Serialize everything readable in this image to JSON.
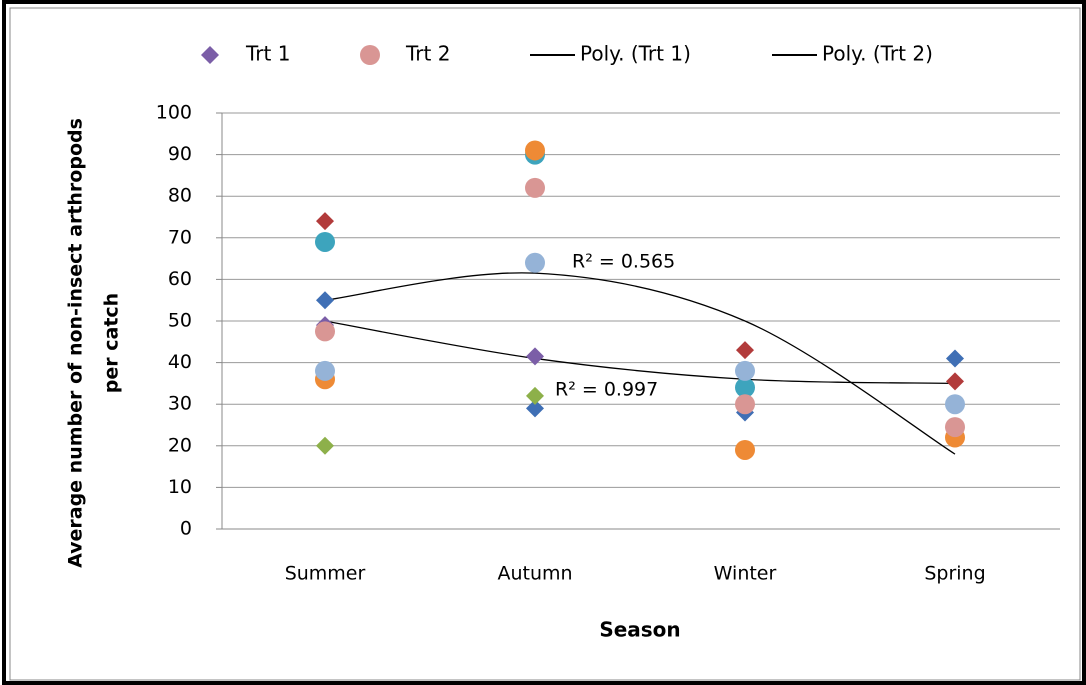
{
  "chart_data": {
    "type": "scatter",
    "x_label": "Season",
    "y_label_lines": [
      "Average number of  non-insect arthropods",
      "per catch"
    ],
    "categories": [
      "Summer",
      "Autumn",
      "Winter",
      "Spring"
    ],
    "ylim": [
      0,
      100
    ],
    "yticks": [
      0,
      10,
      20,
      30,
      40,
      50,
      60,
      70,
      80,
      90,
      100
    ],
    "grid": true,
    "groups": [
      {
        "name": "Trt 1",
        "marker": "diamond",
        "legend_color": "#7b5ea7",
        "replicates": [
          {
            "color": "#3f6fb5",
            "values": [
              55,
              29,
              28,
              41
            ]
          },
          {
            "color": "#b23b3b",
            "values": [
              74,
              null,
              43,
              35.5
            ]
          },
          {
            "color": "#8db04a",
            "values": [
              20,
              32,
              null,
              null
            ]
          },
          {
            "color": "#7b5ea7",
            "values": [
              49,
              41.5,
              null,
              null
            ]
          }
        ],
        "trend": {
          "name": "Poly. (Trt 1)",
          "color": "#000000",
          "values": [
            50,
            41,
            36,
            35
          ],
          "r2": "R² = 0.997"
        }
      },
      {
        "name": "Trt 2",
        "marker": "circle",
        "legend_color": "#d99694",
        "replicates": [
          {
            "color": "#3da4bd",
            "values": [
              69,
              90,
              34,
              null
            ]
          },
          {
            "color": "#ee8a35",
            "values": [
              36,
              91,
              19,
              22
            ]
          },
          {
            "color": "#d99694",
            "values": [
              47.5,
              82,
              30,
              24.5
            ]
          },
          {
            "color": "#95b3d7",
            "values": [
              38,
              64,
              38,
              30
            ]
          }
        ],
        "trend": {
          "name": "Poly. (Trt 2)",
          "color": "#000000",
          "values": [
            55,
            61.5,
            50,
            18
          ],
          "r2": "R² = 0.565"
        }
      }
    ]
  }
}
